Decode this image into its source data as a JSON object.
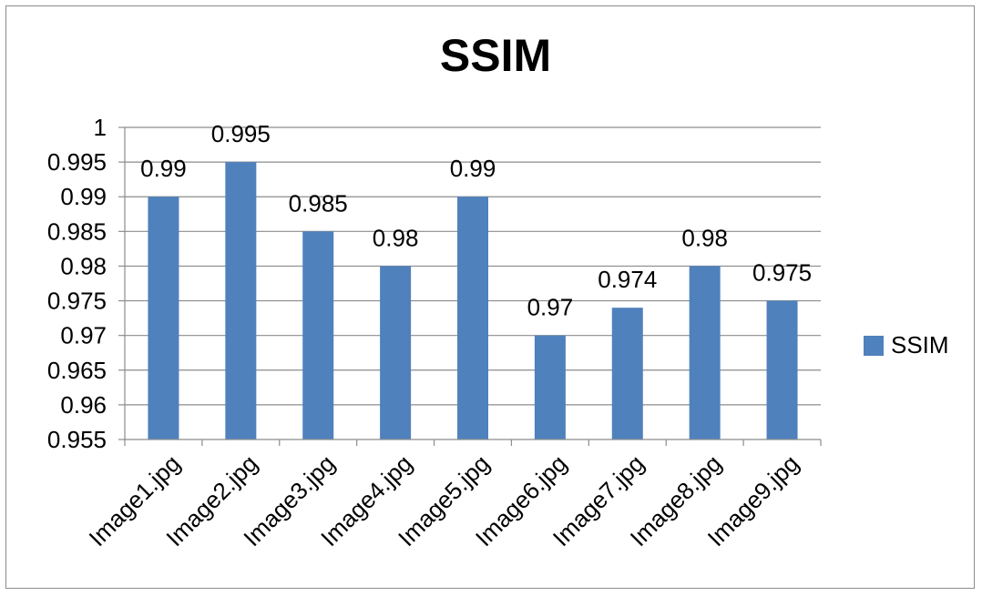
{
  "chart_data": {
    "type": "bar",
    "title": "SSIM",
    "xlabel": "",
    "ylabel": "",
    "categories": [
      "Image1.jpg",
      "Image2.jpg",
      "Image3.jpg",
      "Image4.jpg",
      "Image5.jpg",
      "Image6.jpg",
      "Image7.jpg",
      "Image8.jpg",
      "Image9.jpg"
    ],
    "series": [
      {
        "name": "SSIM",
        "values": [
          0.99,
          0.995,
          0.985,
          0.98,
          0.99,
          0.97,
          0.974,
          0.98,
          0.975
        ],
        "color": "#4f81bd"
      }
    ],
    "data_labels": [
      "0.99",
      "0.995",
      "0.985",
      "0.98",
      "0.99",
      "0.97",
      "0.974",
      "0.98",
      "0.975"
    ],
    "ylim": [
      0.955,
      1
    ],
    "yticks": [
      "0.955",
      "0.96",
      "0.965",
      "0.97",
      "0.975",
      "0.98",
      "0.985",
      "0.99",
      "0.995",
      "1"
    ],
    "grid": true,
    "legend_position": "right"
  }
}
